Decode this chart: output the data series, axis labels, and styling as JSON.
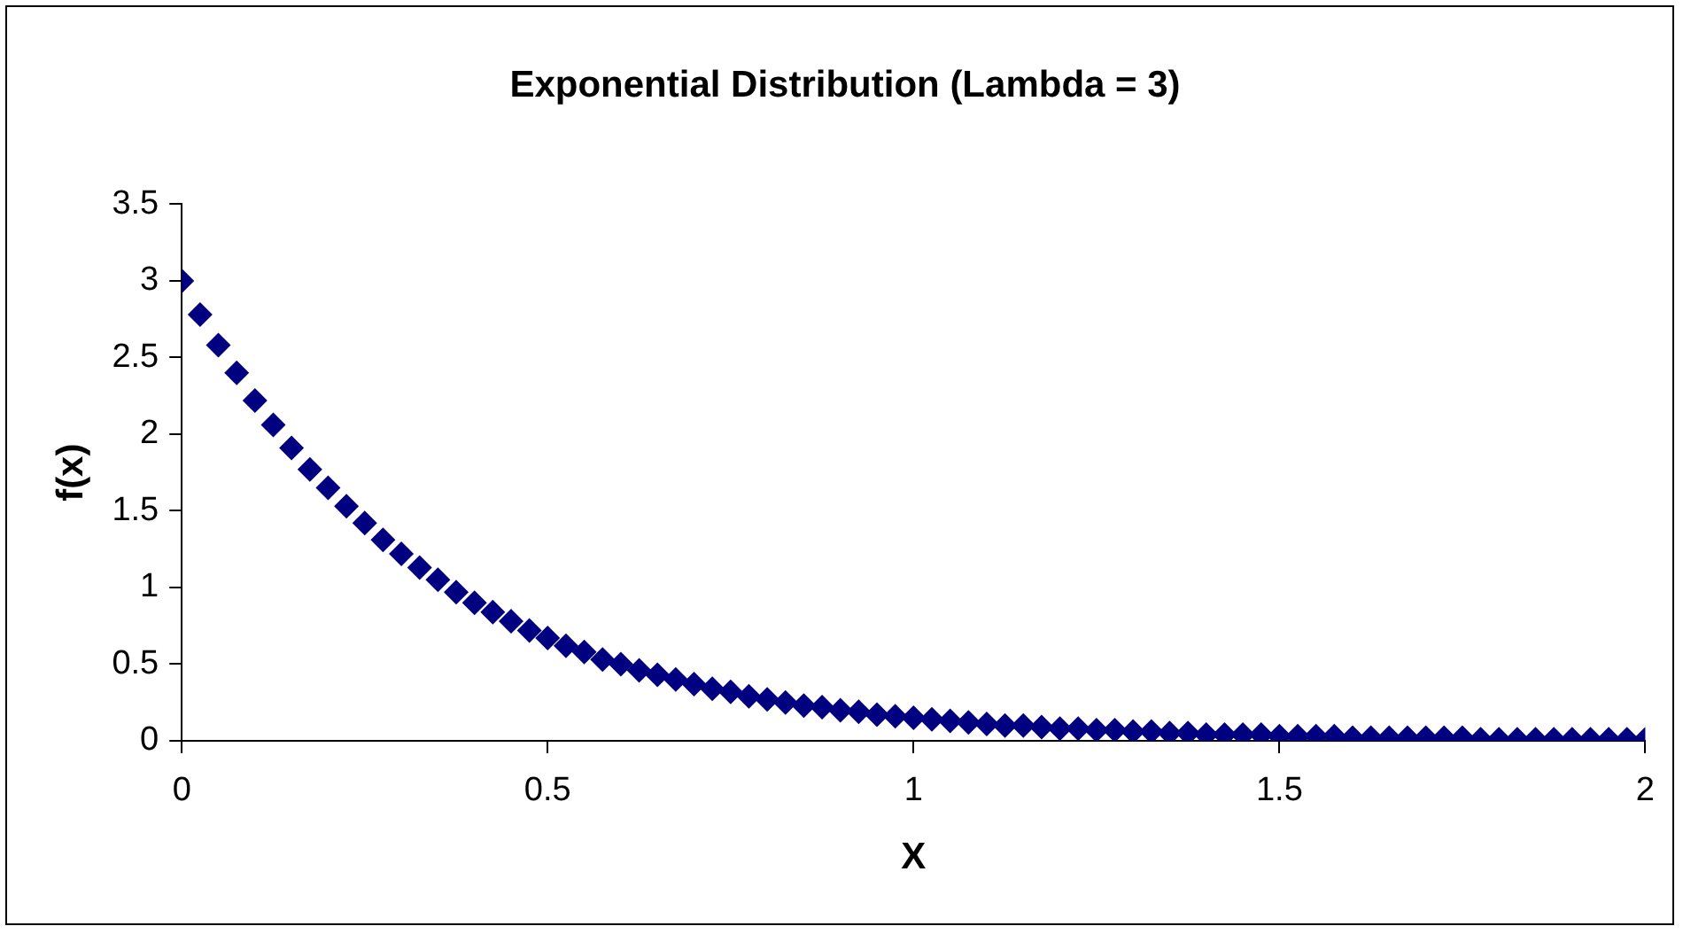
{
  "chart_data": {
    "type": "scatter",
    "title": "Exponential Distribution (Lambda = 3)",
    "xlabel": "X",
    "ylabel": "f(x)",
    "x": [
      0,
      0.025,
      0.05,
      0.075,
      0.1,
      0.125,
      0.15,
      0.175,
      0.2,
      0.225,
      0.25,
      0.275,
      0.3,
      0.325,
      0.35,
      0.375,
      0.4,
      0.425,
      0.45,
      0.475,
      0.5,
      0.525,
      0.55,
      0.575,
      0.6,
      0.625,
      0.65,
      0.675,
      0.7,
      0.725,
      0.75,
      0.775,
      0.8,
      0.825,
      0.85,
      0.875,
      0.9,
      0.925,
      0.95,
      0.975,
      1,
      1.025,
      1.05,
      1.075,
      1.1,
      1.125,
      1.15,
      1.175,
      1.2,
      1.225,
      1.25,
      1.275,
      1.3,
      1.325,
      1.35,
      1.375,
      1.4,
      1.425,
      1.45,
      1.475,
      1.5,
      1.525,
      1.55,
      1.575,
      1.6,
      1.625,
      1.65,
      1.675,
      1.7,
      1.725,
      1.75,
      1.775,
      1.8,
      1.825,
      1.85,
      1.875,
      1.9,
      1.925,
      1.95,
      1.975,
      2
    ],
    "series": [
      {
        "color": "#000080",
        "values": [
          3.0,
          2.78,
          2.58,
          2.4,
          2.22,
          2.06,
          1.91,
          1.77,
          1.65,
          1.53,
          1.42,
          1.31,
          1.22,
          1.13,
          1.05,
          0.97,
          0.9,
          0.84,
          0.78,
          0.72,
          0.67,
          0.62,
          0.58,
          0.53,
          0.5,
          0.46,
          0.43,
          0.4,
          0.37,
          0.34,
          0.32,
          0.29,
          0.27,
          0.25,
          0.23,
          0.22,
          0.2,
          0.19,
          0.17,
          0.16,
          0.15,
          0.14,
          0.13,
          0.12,
          0.11,
          0.1,
          0.1,
          0.09,
          0.08,
          0.08,
          0.07,
          0.07,
          0.06,
          0.06,
          0.05,
          0.05,
          0.04,
          0.04,
          0.04,
          0.04,
          0.03,
          0.03,
          0.03,
          0.03,
          0.02,
          0.02,
          0.02,
          0.02,
          0.02,
          0.02,
          0.02,
          0.01,
          0.01,
          0.01,
          0.01,
          0.01,
          0.01,
          0.01,
          0.01,
          0.01,
          0.01
        ]
      }
    ],
    "xlim": [
      0,
      2
    ],
    "xticks": [
      0,
      0.5,
      1,
      1.5,
      2
    ],
    "ylim": [
      0,
      3.5
    ],
    "yticks": [
      0,
      0.5,
      1,
      1.5,
      2,
      2.5,
      3,
      3.5
    ],
    "grid": false,
    "legend": false,
    "marker": "diamond"
  }
}
